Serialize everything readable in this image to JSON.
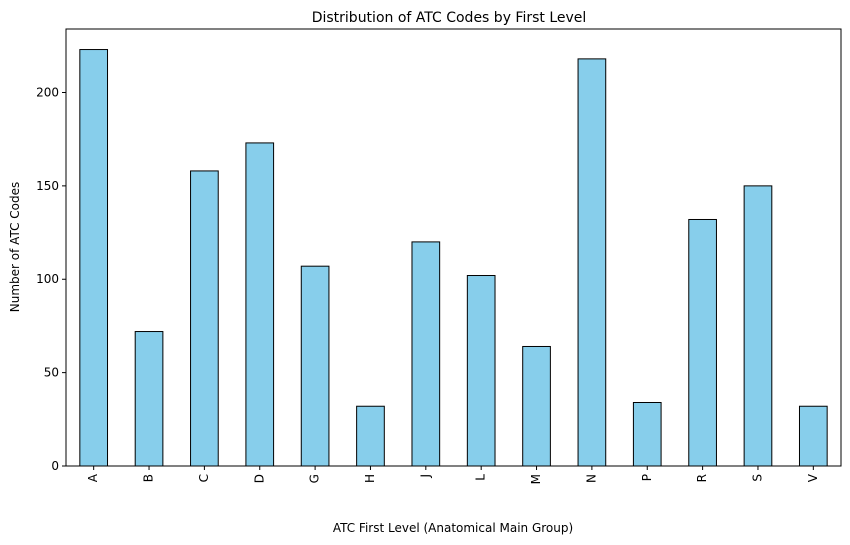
{
  "chart_data": {
    "type": "bar",
    "title": "Distribution of ATC Codes by First Level",
    "xlabel": "ATC First Level (Anatomical Main Group)",
    "ylabel": "Number of ATC Codes",
    "categories": [
      "A",
      "B",
      "C",
      "D",
      "G",
      "H",
      "J",
      "L",
      "M",
      "N",
      "P",
      "R",
      "S",
      "V"
    ],
    "values": [
      223,
      72,
      158,
      173,
      107,
      32,
      120,
      102,
      64,
      218,
      34,
      132,
      150,
      32
    ],
    "ylim": [
      0,
      234
    ],
    "yticks": [
      0,
      50,
      100,
      150,
      200
    ],
    "grid": false,
    "bar_color": "#87CEEB",
    "edge_color": "#000000"
  }
}
